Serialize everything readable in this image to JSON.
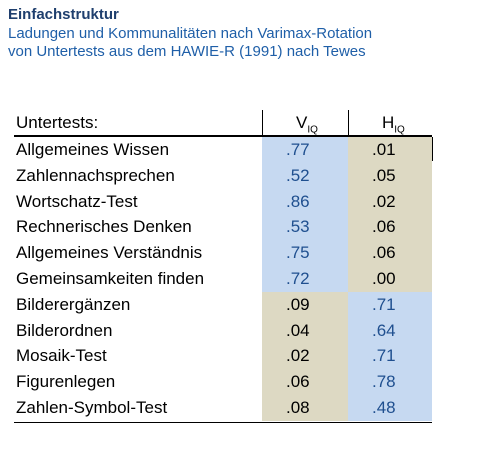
{
  "header": {
    "title": "Einfachstruktur",
    "subtitle_lines": [
      "Ladungen und Kommunalitäten nach Varimax-Rotation",
      "von Untertests aus dem HAWIE-R (1991) nach Tewes"
    ]
  },
  "table": {
    "label_header": "Untertests:",
    "columns": [
      {
        "main": "V",
        "sub": "IQ"
      },
      {
        "main": "H",
        "sub": "IQ"
      }
    ],
    "rows": [
      [
        "Allgemeines Wissen",
        ".77",
        ".01"
      ],
      [
        "Zahlennachsprechen",
        ".52",
        ".05"
      ],
      [
        "Wortschatz-Test",
        ".86",
        ".02"
      ],
      [
        "Rechnerisches Denken",
        ".53",
        ".06"
      ],
      [
        "Allgemeines Verständnis",
        ".75",
        ".06"
      ],
      [
        "Gemeinsamkeiten finden",
        ".72",
        ".00"
      ],
      [
        "Bilderergänzen",
        ".09",
        ".71"
      ],
      [
        "Bilderordnen",
        ".04",
        ".64"
      ],
      [
        "Mosaik-Test",
        ".02",
        ".71"
      ],
      [
        "Figurenlegen",
        ".06",
        ".78"
      ],
      [
        "Zahlen-Symbol-Test",
        ".08",
        ".48"
      ]
    ]
  }
}
